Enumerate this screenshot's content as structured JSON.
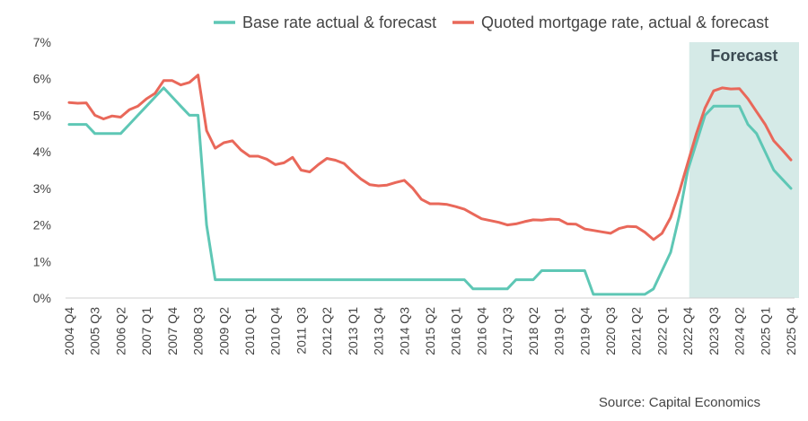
{
  "chart_data": {
    "type": "line",
    "title": "",
    "xlabel": "",
    "ylabel": "",
    "ylim": [
      0,
      7
    ],
    "y_ticks": [
      "0%",
      "1%",
      "2%",
      "3%",
      "4%",
      "5%",
      "6%",
      "7%"
    ],
    "grid": false,
    "legend_position": "top",
    "forecast_label": "Forecast",
    "forecast_start": "2023 Q1",
    "forecast_end": "2025 Q4",
    "source": "Source: Capital Economics",
    "x_tick_labels": [
      "2004 Q4",
      "2005 Q3",
      "2006 Q2",
      "2007 Q1",
      "2007 Q4",
      "2008 Q3",
      "2009 Q2",
      "2010 Q1",
      "2010 Q4",
      "2011 Q3",
      "2012 Q2",
      "2013 Q1",
      "2013 Q4",
      "2014 Q3",
      "2015 Q2",
      "2016 Q1",
      "2016 Q4",
      "2017 Q3",
      "2018 Q2",
      "2019 Q1",
      "2019 Q4",
      "2020 Q3",
      "2021 Q2",
      "2022 Q1",
      "2022 Q4",
      "2023 Q3",
      "2024 Q2",
      "2025 Q1",
      "2025 Q4"
    ],
    "x": [
      "2004 Q4",
      "2005 Q1",
      "2005 Q2",
      "2005 Q3",
      "2005 Q4",
      "2006 Q1",
      "2006 Q2",
      "2006 Q3",
      "2006 Q4",
      "2007 Q1",
      "2007 Q2",
      "2007 Q3",
      "2007 Q4",
      "2008 Q1",
      "2008 Q2",
      "2008 Q3",
      "2008 Q4",
      "2009 Q1",
      "2009 Q2",
      "2009 Q3",
      "2009 Q4",
      "2010 Q1",
      "2010 Q2",
      "2010 Q3",
      "2010 Q4",
      "2011 Q1",
      "2011 Q2",
      "2011 Q3",
      "2011 Q4",
      "2012 Q1",
      "2012 Q2",
      "2012 Q3",
      "2012 Q4",
      "2013 Q1",
      "2013 Q2",
      "2013 Q3",
      "2013 Q4",
      "2014 Q1",
      "2014 Q2",
      "2014 Q3",
      "2014 Q4",
      "2015 Q1",
      "2015 Q2",
      "2015 Q3",
      "2015 Q4",
      "2016 Q1",
      "2016 Q2",
      "2016 Q3",
      "2016 Q4",
      "2017 Q1",
      "2017 Q2",
      "2017 Q3",
      "2017 Q4",
      "2018 Q1",
      "2018 Q2",
      "2018 Q3",
      "2018 Q4",
      "2019 Q1",
      "2019 Q2",
      "2019 Q3",
      "2019 Q4",
      "2020 Q1",
      "2020 Q2",
      "2020 Q3",
      "2020 Q4",
      "2021 Q1",
      "2021 Q2",
      "2021 Q3",
      "2021 Q4",
      "2022 Q1",
      "2022 Q2",
      "2022 Q3",
      "2022 Q4",
      "2023 Q1",
      "2023 Q2",
      "2023 Q3",
      "2023 Q4",
      "2024 Q1",
      "2024 Q2",
      "2024 Q3",
      "2024 Q4",
      "2025 Q1",
      "2025 Q2",
      "2025 Q3",
      "2025 Q4"
    ],
    "series": [
      {
        "name": "Base rate actual & forecast",
        "color": "#5ec7b5",
        "values": [
          4.75,
          4.75,
          4.75,
          4.5,
          4.5,
          4.5,
          4.5,
          4.75,
          5.0,
          5.25,
          5.5,
          5.75,
          5.5,
          5.25,
          5.0,
          5.0,
          2.0,
          0.5,
          0.5,
          0.5,
          0.5,
          0.5,
          0.5,
          0.5,
          0.5,
          0.5,
          0.5,
          0.5,
          0.5,
          0.5,
          0.5,
          0.5,
          0.5,
          0.5,
          0.5,
          0.5,
          0.5,
          0.5,
          0.5,
          0.5,
          0.5,
          0.5,
          0.5,
          0.5,
          0.5,
          0.5,
          0.5,
          0.25,
          0.25,
          0.25,
          0.25,
          0.25,
          0.5,
          0.5,
          0.5,
          0.75,
          0.75,
          0.75,
          0.75,
          0.75,
          0.75,
          0.1,
          0.1,
          0.1,
          0.1,
          0.1,
          0.1,
          0.1,
          0.25,
          0.75,
          1.25,
          2.25,
          3.5,
          4.25,
          5.0,
          5.25,
          5.25,
          5.25,
          5.25,
          4.75,
          4.5,
          4.0,
          3.5,
          3.25,
          3.0
        ]
      },
      {
        "name": "Quoted mortgage rate, actual & forecast",
        "color": "#e9685a",
        "values": [
          5.35,
          5.33,
          5.34,
          5.0,
          4.9,
          4.98,
          4.95,
          5.15,
          5.25,
          5.45,
          5.6,
          5.95,
          5.95,
          5.83,
          5.9,
          6.1,
          4.58,
          4.1,
          4.25,
          4.3,
          4.05,
          3.88,
          3.88,
          3.8,
          3.65,
          3.7,
          3.85,
          3.5,
          3.45,
          3.65,
          3.82,
          3.77,
          3.68,
          3.45,
          3.25,
          3.1,
          3.07,
          3.09,
          3.16,
          3.22,
          3.0,
          2.7,
          2.58,
          2.58,
          2.56,
          2.5,
          2.43,
          2.3,
          2.17,
          2.12,
          2.07,
          2.0,
          2.03,
          2.09,
          2.14,
          2.13,
          2.16,
          2.15,
          2.03,
          2.02,
          1.89,
          1.85,
          1.81,
          1.77,
          1.9,
          1.96,
          1.95,
          1.8,
          1.6,
          1.77,
          2.2,
          2.9,
          3.7,
          4.5,
          5.2,
          5.67,
          5.75,
          5.72,
          5.73,
          5.45,
          5.1,
          4.75,
          4.3,
          4.05,
          3.78
        ]
      }
    ]
  }
}
